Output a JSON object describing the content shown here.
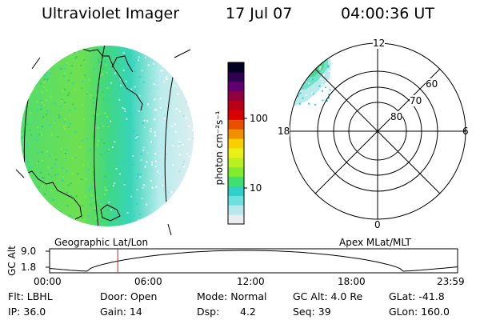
{
  "header": {
    "instrument": "Ultraviolet Imager",
    "date": "17 Jul 07",
    "time": "04:00:36 UT"
  },
  "colorbar": {
    "unit_label": "photon cm⁻²s⁻¹",
    "ticks": [
      "100",
      "10"
    ],
    "colors": [
      "#e8eef0",
      "#b8e8ec",
      "#6ee0e0",
      "#30d0c8",
      "#40e070",
      "#80ec30",
      "#b8f020",
      "#e8f018",
      "#f8d000",
      "#f09000",
      "#e85000",
      "#d80000",
      "#b80018",
      "#900040",
      "#600070",
      "#300050",
      "#000020"
    ]
  },
  "left_map": {
    "label": "Geographic Lat/Lon"
  },
  "right_polar": {
    "label": "Apex MLat/MLT",
    "mlt_labels": {
      "top": "12",
      "left": "18",
      "right": "6",
      "bottom": "0"
    },
    "lat_labels": [
      "60",
      "70",
      "80"
    ]
  },
  "timeline": {
    "ylabel": "GC Alt",
    "y_ticks": [
      "9.0",
      "1.8"
    ],
    "x_ticks": [
      "00:00",
      "06:00",
      "12:00",
      "18:00",
      "23:59"
    ],
    "current_time_hours": 4.01,
    "marker_color": "#cc2222"
  },
  "status": {
    "flt": "Flt: LBHL",
    "ip": "IP: 36.0",
    "door": "Door: Open",
    "gain": "Gain: 14",
    "mode": "Mode: Normal",
    "dsp_label": "Dsp:",
    "dsp_value": "4.2",
    "gc_alt": "GC Alt: 4.0 Re",
    "seq": "Seq: 39",
    "glat": "GLat: -41.8",
    "glon": "GLon: 160.0"
  }
}
